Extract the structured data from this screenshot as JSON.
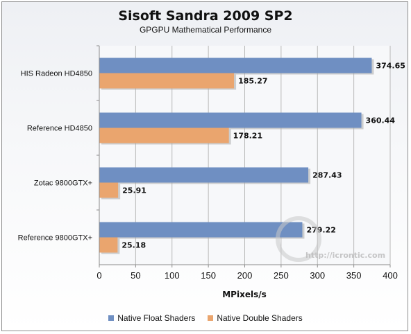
{
  "chart_data": {
    "type": "bar",
    "orientation": "horizontal",
    "title": "Sisoft Sandra 2009 SP2",
    "subtitle": "GPGPU Mathematical Performance",
    "xlabel": "MPixels/s",
    "ylabel": "",
    "categories": [
      "HIS Radeon HD4850",
      "Reference HD4850",
      "Zotac 9800GTX+",
      "Reference 9800GTX+"
    ],
    "series": [
      {
        "name": "Native Float Shaders",
        "color": "#6f8fc2",
        "values": [
          374.65,
          360.44,
          287.43,
          279.22
        ],
        "labels": [
          "374.65",
          "360.44",
          "287.43",
          "279.22"
        ]
      },
      {
        "name": "Native Double Shaders",
        "color": "#eaa56e",
        "values": [
          185.27,
          178.21,
          25.91,
          25.18
        ],
        "labels": [
          "185.27",
          "178.21",
          "25.91",
          "25.18"
        ]
      }
    ],
    "xlim": [
      0,
      400
    ],
    "xticks": [
      0,
      50,
      100,
      150,
      200,
      250,
      300,
      350,
      400
    ],
    "xtick_labels": [
      "0",
      "50",
      "100",
      "150",
      "200",
      "250",
      "300",
      "350",
      "400"
    ],
    "grid": true,
    "legend_position": "bottom"
  },
  "watermark": "http://icrontic.com"
}
